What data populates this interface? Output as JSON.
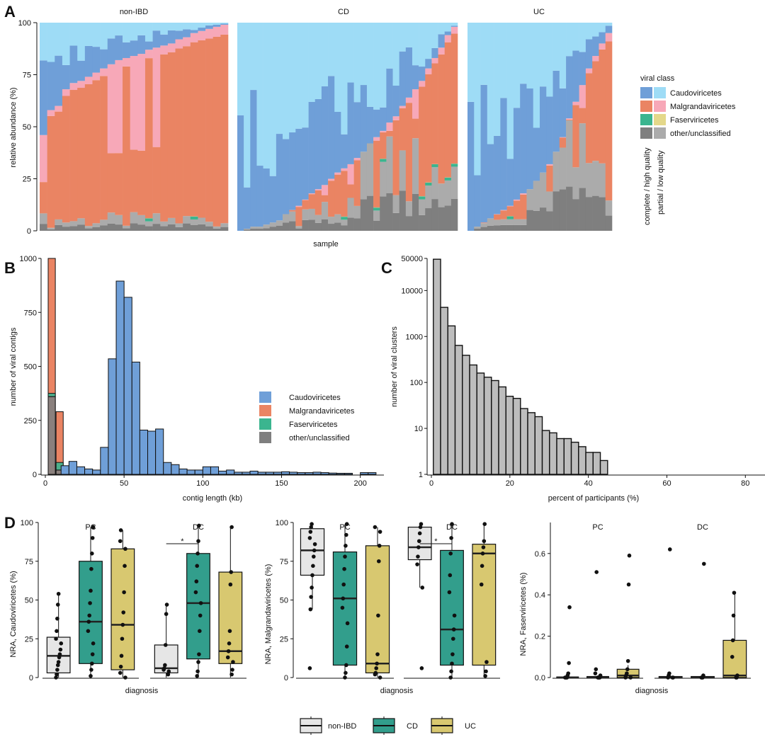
{
  "colors": {
    "caudo_hq": "#6f9fd8",
    "caudo_lq": "#9edcf6",
    "malgr_hq": "#ea8463",
    "malgr_lq": "#f7a8b8",
    "faser_hq": "#3bb58f",
    "faser_lq": "#e4d88a",
    "other_hq": "#7f7f7f",
    "other_lq": "#ababab",
    "nonibd_box": "#e6e6e6",
    "cd_box": "#329e8c",
    "uc_box": "#d8c870",
    "hist_blue": "#6f9fd8",
    "hist_orange": "#ea8463",
    "hist_green": "#3bb58f",
    "hist_gray": "#7f7f7f",
    "hist_c": "#bdbdbd"
  },
  "panel_labels": {
    "a": "A",
    "b": "B",
    "c": "C",
    "d": "D"
  },
  "panelA": {
    "facets": [
      "non-IBD",
      "CD",
      "UC"
    ],
    "xlabel": "sample",
    "ylabel": "relative abundance (%)",
    "yticks": [
      "0",
      "25",
      "50",
      "75",
      "100"
    ],
    "legend": {
      "title": "viral class",
      "items": [
        "Caudoviricetes",
        "Malgrandaviricetes",
        "Faserviricetes",
        "other/unclassified"
      ],
      "col1": "complete / high quality",
      "col2": "partial / low quality"
    }
  },
  "chart_data": [
    {
      "id": "A",
      "type": "bar",
      "stacked": true,
      "title": "",
      "xlabel": "sample",
      "ylabel": "relative abundance (%)",
      "ylim": [
        0,
        100
      ],
      "note": "stacked composition per sample (bottom to top: other/unclassified, Faserviricetes, Malgrandaviricetes, Caudoviricetes); Caudoviricetes top share estimated",
      "facets": [
        {
          "name": "non-IBD",
          "samples": 25,
          "caudoviricetes_top": [
            54,
            42,
            40,
            32,
            29,
            28,
            26,
            24,
            22,
            20,
            18,
            17,
            16,
            15,
            13,
            12,
            11,
            10,
            8,
            7,
            5,
            4,
            3,
            2,
            1
          ]
        },
        {
          "name": "CD",
          "samples": 34,
          "caudoviricetes_top": [
            100,
            99,
            98,
            98,
            97,
            96,
            95,
            92,
            90,
            88,
            85,
            82,
            80,
            78,
            75,
            72,
            70,
            68,
            65,
            62,
            58,
            55,
            52,
            48,
            45,
            40,
            36,
            32,
            28,
            22,
            17,
            12,
            6,
            2
          ]
        },
        {
          "name": "UC",
          "samples": 22,
          "caudoviricetes_top": [
            100,
            98,
            96,
            94,
            92,
            90,
            88,
            85,
            82,
            80,
            76,
            72,
            68,
            62,
            55,
            46,
            38,
            30,
            22,
            16,
            10,
            5
          ]
        }
      ]
    },
    {
      "id": "B",
      "type": "bar",
      "stacked": true,
      "title": "",
      "xlabel": "contig length (kb)",
      "ylabel": "number of viral contigs",
      "xlim": [
        0,
        215
      ],
      "ylim": [
        0,
        1000
      ],
      "xticks": [
        "0",
        "50",
        "100",
        "150",
        "200"
      ],
      "yticks": [
        "0",
        "250",
        "500",
        "750",
        "1000"
      ],
      "bin_width_kb": 5,
      "series": [
        {
          "name": "Caudoviricetes",
          "bins_start_kb": [
            10,
            15,
            20,
            25,
            30,
            35,
            40,
            45,
            50,
            55,
            60,
            65,
            70,
            75,
            80,
            85,
            90,
            95,
            100,
            105,
            110,
            115,
            120,
            125,
            130,
            135,
            140,
            145,
            150,
            155,
            160,
            165,
            170,
            175,
            180,
            185,
            190,
            195,
            200,
            205,
            210
          ],
          "values": [
            40,
            60,
            35,
            25,
            20,
            125,
            535,
            895,
            820,
            520,
            205,
            200,
            210,
            55,
            45,
            25,
            20,
            20,
            35,
            35,
            15,
            20,
            10,
            10,
            15,
            10,
            10,
            10,
            12,
            10,
            8,
            8,
            10,
            8,
            6,
            5,
            5,
            0,
            8,
            8,
            0
          ]
        },
        {
          "name": "Malgrandaviricetes",
          "bins_start_kb": [
            0,
            5
          ],
          "values": [
            630,
            235
          ]
        },
        {
          "name": "Faserviricetes",
          "bins_start_kb": [
            0,
            5
          ],
          "values": [
            15,
            35
          ]
        },
        {
          "name": "other/unclassified",
          "bins_start_kb": [
            0,
            5
          ],
          "values": [
            360,
            20
          ]
        }
      ]
    },
    {
      "id": "C",
      "type": "bar",
      "title": "",
      "xlabel": "percent of participants (%)",
      "ylabel": "number of viral clusters",
      "yscale": "log10",
      "ylim": [
        1,
        50000
      ],
      "xlim": [
        0,
        85
      ],
      "xticks": [
        "0",
        "20",
        "40",
        "60",
        "80"
      ],
      "yticks": [
        "1",
        "10",
        "100",
        "1000",
        "10000",
        "50000"
      ],
      "bin_width": 1.85,
      "values": [
        48000,
        4300,
        1700,
        640,
        390,
        240,
        160,
        130,
        110,
        80,
        50,
        45,
        27,
        22,
        18,
        9,
        8,
        6,
        6,
        5,
        4,
        3,
        3,
        2
      ]
    },
    {
      "id": "D1",
      "type": "box",
      "ylabel": "NRA, Caudoviricetes (%)",
      "xlabel": "diagnosis",
      "facets": [
        "PC",
        "DC"
      ],
      "ylim": [
        0,
        100
      ],
      "yticks": [
        "0",
        "25",
        "50",
        "75",
        "100"
      ],
      "significance": [
        {
          "facet": "DC",
          "pair": [
            "non-IBD",
            "CD"
          ],
          "label": "*"
        }
      ],
      "groups": [
        {
          "facet": "PC",
          "group": "non-IBD",
          "q1": 3,
          "median": 14,
          "q3": 26,
          "whisker_low": 0,
          "whisker_high": 54,
          "points": [
            0,
            2,
            5,
            8,
            10,
            13,
            15,
            18,
            22,
            25,
            30,
            38,
            47,
            54
          ]
        },
        {
          "facet": "PC",
          "group": "CD",
          "q1": 9,
          "median": 36,
          "q3": 75,
          "whisker_low": 0,
          "whisker_high": 97,
          "points": [
            1,
            5,
            9,
            15,
            22,
            30,
            36,
            40,
            48,
            56,
            70,
            80,
            90,
            97
          ]
        },
        {
          "facet": "PC",
          "group": "UC",
          "q1": 5,
          "median": 34,
          "q3": 83,
          "whisker_low": 0,
          "whisker_high": 95,
          "points": [
            0,
            3,
            7,
            14,
            25,
            34,
            42,
            55,
            72,
            83,
            88,
            95
          ]
        },
        {
          "facet": "DC",
          "group": "non-IBD",
          "q1": 3,
          "median": 6,
          "q3": 21,
          "whisker_low": 0,
          "whisker_high": 47,
          "points": [
            2,
            4,
            5,
            6,
            8,
            21,
            41,
            47
          ]
        },
        {
          "facet": "DC",
          "group": "CD",
          "q1": 12,
          "median": 48,
          "q3": 80,
          "whisker_low": 0,
          "whisker_high": 98,
          "points": [
            1,
            4,
            10,
            15,
            30,
            40,
            48,
            55,
            62,
            72,
            80,
            88,
            98
          ]
        },
        {
          "facet": "DC",
          "group": "UC",
          "q1": 9,
          "median": 17,
          "q3": 68,
          "whisker_low": 0,
          "whisker_high": 97,
          "points": [
            2,
            5,
            10,
            13,
            17,
            22,
            30,
            60,
            68,
            97
          ]
        }
      ]
    },
    {
      "id": "D2",
      "type": "box",
      "ylabel": "NRA, Malgrandaviricetes (%)",
      "xlabel": "diagnosis",
      "facets": [
        "PC",
        "DC"
      ],
      "ylim": [
        0,
        100
      ],
      "yticks": [
        "0",
        "25",
        "50",
        "75",
        "100"
      ],
      "significance": [
        {
          "facet": "DC",
          "pair": [
            "non-IBD",
            "CD"
          ],
          "label": "*"
        }
      ],
      "groups": [
        {
          "facet": "PC",
          "group": "non-IBD",
          "q1": 66,
          "median": 82,
          "q3": 96,
          "whisker_low": 44,
          "whisker_high": 99,
          "points": [
            6,
            44,
            52,
            58,
            66,
            72,
            78,
            82,
            86,
            90,
            94,
            97,
            99
          ]
        },
        {
          "facet": "PC",
          "group": "CD",
          "q1": 8,
          "median": 51,
          "q3": 81,
          "whisker_low": 0,
          "whisker_high": 99,
          "points": [
            0,
            3,
            8,
            20,
            35,
            45,
            51,
            60,
            70,
            78,
            85,
            92,
            99
          ]
        },
        {
          "facet": "PC",
          "group": "UC",
          "q1": 3,
          "median": 9,
          "q3": 85,
          "whisker_low": 0,
          "whisker_high": 97,
          "points": [
            0,
            2,
            3,
            6,
            9,
            15,
            40,
            75,
            85,
            94,
            97
          ]
        },
        {
          "facet": "DC",
          "group": "non-IBD",
          "q1": 76,
          "median": 84,
          "q3": 97,
          "whisker_low": 58,
          "whisker_high": 99,
          "points": [
            6,
            58,
            73,
            78,
            84,
            88,
            93,
            97,
            99
          ]
        },
        {
          "facet": "DC",
          "group": "CD",
          "q1": 8,
          "median": 31,
          "q3": 82,
          "whisker_low": 0,
          "whisker_high": 99,
          "points": [
            0,
            4,
            9,
            15,
            25,
            31,
            40,
            55,
            66,
            80,
            90,
            99
          ]
        },
        {
          "facet": "DC",
          "group": "UC",
          "q1": 8,
          "median": 80,
          "q3": 86,
          "whisker_low": 0,
          "whisker_high": 99,
          "points": [
            1,
            4,
            10,
            60,
            72,
            80,
            84,
            88,
            99
          ]
        }
      ]
    },
    {
      "id": "D3",
      "type": "box",
      "ylabel": "NRA, Faserviricetes (%)",
      "xlabel": "diagnosis",
      "facets": [
        "PC",
        "DC"
      ],
      "ylim": [
        0,
        0.75
      ],
      "yticks": [
        "0.0",
        "0.2",
        "0.4",
        "0.6"
      ],
      "groups": [
        {
          "facet": "PC",
          "group": "non-IBD",
          "q1": 0,
          "median": 0,
          "q3": 0.003,
          "whisker_low": 0,
          "whisker_high": 0.005,
          "points": [
            0,
            0,
            0,
            0,
            0.01,
            0.02,
            0.07,
            0.34
          ]
        },
        {
          "facet": "PC",
          "group": "CD",
          "q1": 0,
          "median": 0,
          "q3": 0.005,
          "whisker_low": 0,
          "whisker_high": 0.01,
          "points": [
            0,
            0,
            0,
            0,
            0.01,
            0.02,
            0.04,
            0.51
          ]
        },
        {
          "facet": "PC",
          "group": "UC",
          "q1": 0,
          "median": 0.01,
          "q3": 0.04,
          "whisker_low": 0,
          "whisker_high": 0.06,
          "points": [
            0,
            0,
            0.01,
            0.02,
            0.04,
            0.08,
            0.45,
            0.59
          ]
        },
        {
          "facet": "DC",
          "group": "non-IBD",
          "q1": 0,
          "median": 0,
          "q3": 0.005,
          "whisker_low": 0,
          "whisker_high": 0.01,
          "points": [
            0,
            0,
            0,
            0.01,
            0.02,
            0.62
          ]
        },
        {
          "facet": "DC",
          "group": "CD",
          "q1": 0,
          "median": 0,
          "q3": 0.005,
          "whisker_low": 0,
          "whisker_high": 0.01,
          "points": [
            0,
            0,
            0,
            0.01,
            0.55
          ]
        },
        {
          "facet": "DC",
          "group": "UC",
          "q1": 0,
          "median": 0.01,
          "q3": 0.18,
          "whisker_low": 0,
          "whisker_high": 0.41,
          "points": [
            0,
            0,
            0.01,
            0.1,
            0.18,
            0.3,
            0.41
          ]
        }
      ]
    }
  ],
  "panelB": {
    "legend": [
      "Caudoviricetes",
      "Malgrandaviricetes",
      "Faserviricetes",
      "other/unclassified"
    ]
  },
  "panelD": {
    "legend": [
      "non-IBD",
      "CD",
      "UC"
    ]
  }
}
